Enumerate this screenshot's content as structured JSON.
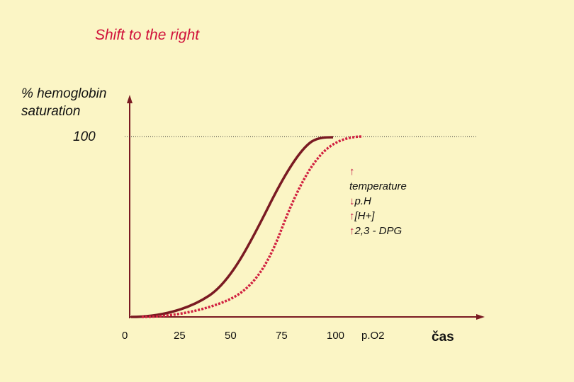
{
  "title": "Shift to the right",
  "y_axis_label_line1": "% hemoglobin",
  "y_axis_label_line2": "saturation",
  "y_max_label": "100",
  "x_ticks": [
    "0",
    "25",
    "50",
    "75",
    "100"
  ],
  "x_variable_label": "p.O2",
  "time_label": "čas",
  "factors": [
    {
      "arrow": "↑",
      "text": "temperature"
    },
    {
      "arrow": "↓",
      "text": "p.H"
    },
    {
      "arrow": "↑",
      "text": "[H+]"
    },
    {
      "arrow": "↑",
      "text": "2,3 - DPG"
    }
  ],
  "colors": {
    "background": "#fbf5c5",
    "axes": "#7a1a22",
    "normal_curve": "#7a1a22",
    "shifted_curve": "#d02040",
    "title": "#d0103a"
  }
}
